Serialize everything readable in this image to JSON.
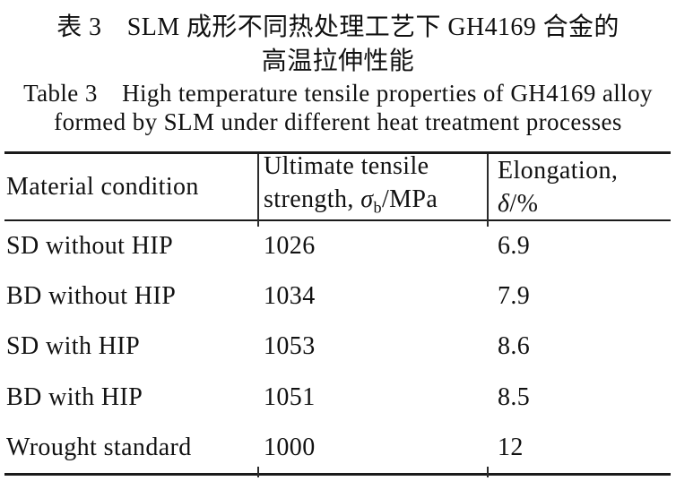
{
  "caption": {
    "zh_line1": "表 3　SLM 成形不同热处理工艺下 GH4169 合金的",
    "zh_line2": "高温拉伸性能",
    "en_line1": "Table 3 High temperature tensile properties of GH4169 alloy",
    "en_line2": "formed by SLM under different heat treatment processes"
  },
  "table": {
    "header": {
      "col1": "Material condition",
      "col2_line1": "Ultimate tensile",
      "col2_line2_prefix": "strength, ",
      "col2_sigma": "σ",
      "col2_sub": "b",
      "col2_suffix": "/MPa",
      "col3_line1": "Elongation,",
      "col3_delta": "δ",
      "col3_suffix": "/%"
    },
    "rows": [
      {
        "condition": "SD without HIP",
        "uts": "1026",
        "elongation": "6.9"
      },
      {
        "condition": "BD without HIP",
        "uts": "1034",
        "elongation": "7.9"
      },
      {
        "condition": "SD with HIP",
        "uts": "1053",
        "elongation": "8.6"
      },
      {
        "condition": "BD with HIP",
        "uts": "1051",
        "elongation": "8.5"
      },
      {
        "condition": "Wrought standard",
        "uts": "1000",
        "elongation": "12"
      }
    ]
  },
  "colors": {
    "text": "#111111",
    "rule": "#1a1a1a",
    "background": "#ffffff"
  }
}
